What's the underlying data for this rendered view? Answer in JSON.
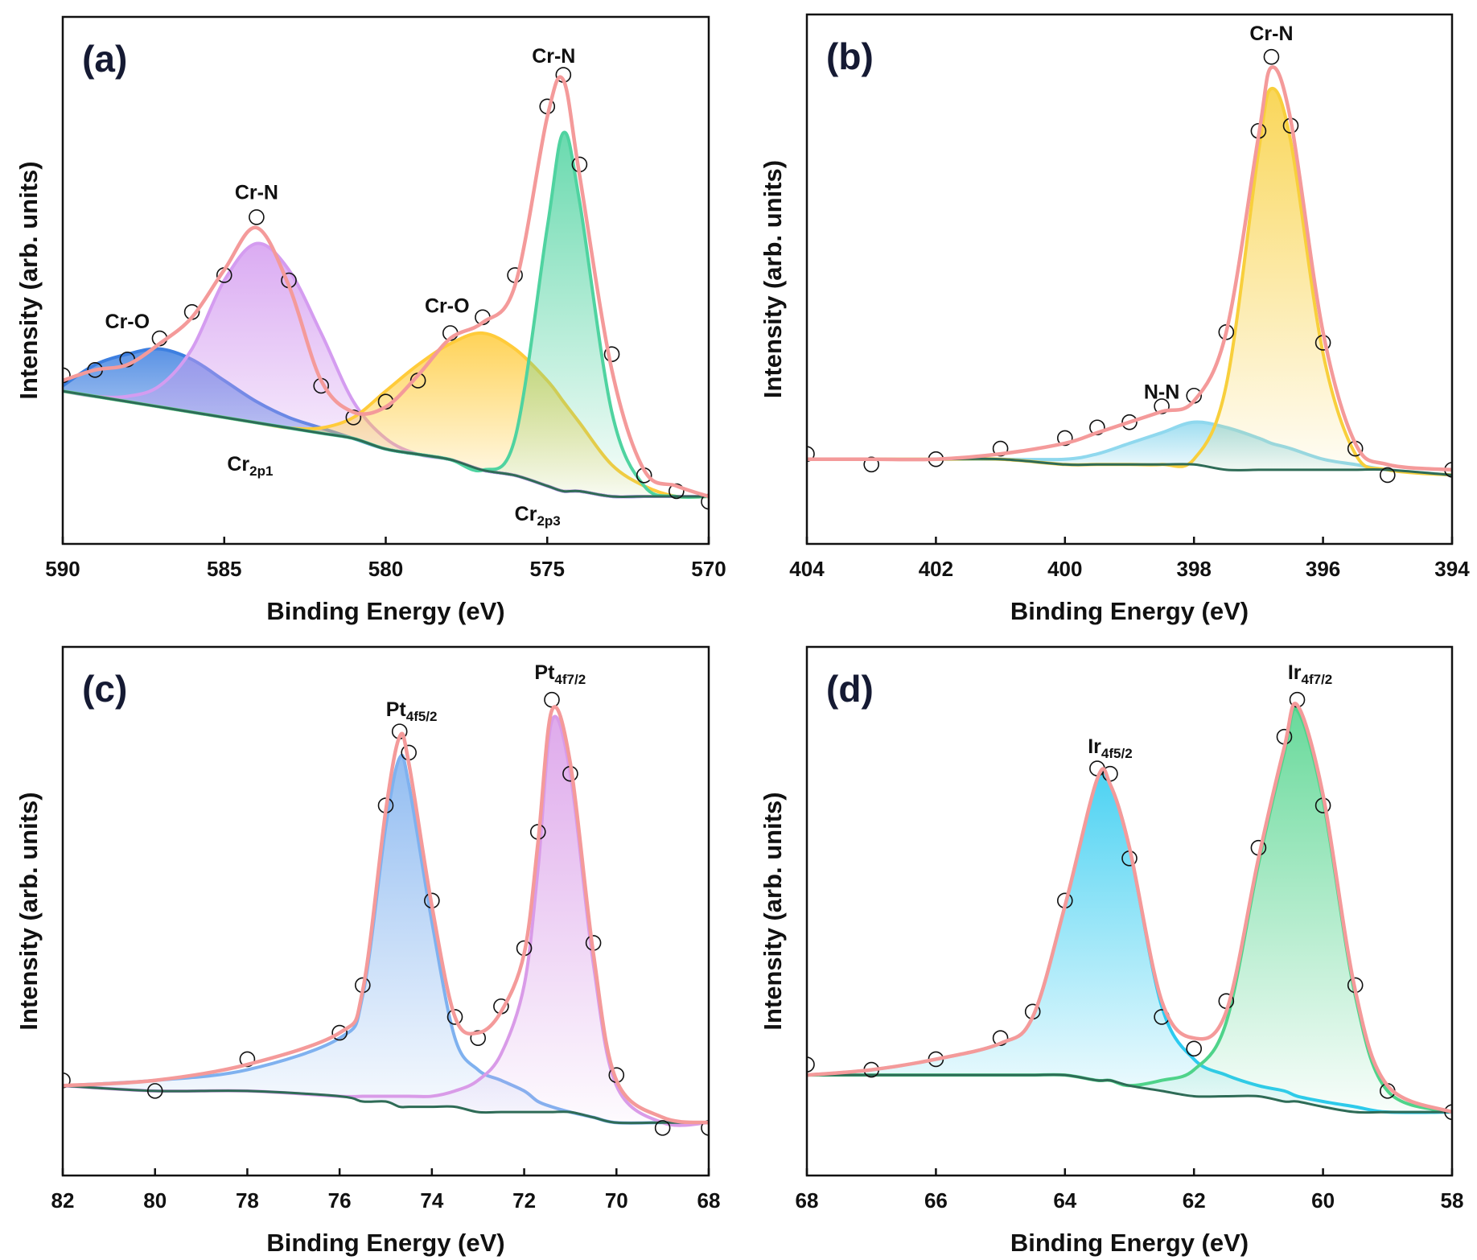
{
  "chart_data": [
    {
      "type": "line",
      "label": "(a)",
      "xlabel": "Binding Energy (eV)",
      "ylabel": "Intensity (arb. units)",
      "x": [
        590,
        589,
        588,
        587,
        586,
        585,
        584,
        583,
        582,
        581,
        580,
        579,
        578,
        577,
        576,
        575,
        574.5,
        574,
        573,
        572,
        571,
        570
      ],
      "xlim": [
        590,
        570
      ],
      "xticks": [
        590,
        585,
        580,
        575,
        570
      ],
      "ylim": [
        0,
        100
      ],
      "series": [
        {
          "mark": "area",
          "color": "#3d7fe0",
          "values": [
            30,
            34,
            36,
            37,
            35,
            31,
            27,
            24,
            22,
            20,
            18,
            17,
            16,
            14,
            13,
            11,
            10,
            10,
            9,
            9,
            9,
            9
          ]
        },
        {
          "mark": "area",
          "color": "#d49cf0",
          "values": [
            29,
            28,
            28,
            30,
            37,
            50,
            57,
            52,
            40,
            27,
            20,
            17,
            16,
            14,
            13,
            11,
            10,
            10,
            9,
            9,
            9,
            9
          ]
        },
        {
          "mark": "area",
          "color": "#ffcb3a",
          "values": [
            29,
            28,
            27,
            26,
            25,
            24,
            23,
            22,
            22,
            24,
            29,
            34,
            38,
            40,
            37,
            31,
            27,
            23,
            15,
            11,
            9,
            9
          ]
        },
        {
          "mark": "area",
          "color": "#4fd3a0",
          "values": [
            29,
            28,
            27,
            26,
            25,
            24,
            23,
            22,
            21,
            20,
            18,
            17,
            16,
            14,
            20,
            60,
            78,
            65,
            25,
            11,
            9,
            9
          ]
        },
        {
          "mark": "baseline",
          "color": "#2e6b56",
          "values": [
            29,
            28,
            27,
            26,
            25,
            24,
            23,
            22,
            21,
            20,
            18,
            17,
            16,
            14,
            13,
            11,
            10,
            10,
            9,
            9,
            9,
            9
          ]
        },
        {
          "mark": "scatter",
          "color": "#111111",
          "values": [
            32,
            33,
            35,
            39,
            44,
            51,
            62,
            50,
            30,
            24,
            27,
            31,
            40,
            43,
            51,
            83,
            89,
            72,
            36,
            13,
            10,
            8
          ]
        },
        {
          "mark": "line",
          "color": "#f49a9a",
          "values": [
            31,
            33,
            34,
            38,
            43,
            52,
            60,
            49,
            31,
            25,
            26,
            32,
            39,
            42,
            49,
            81,
            88,
            70,
            33,
            14,
            11,
            9
          ]
        }
      ],
      "annotations": [
        {
          "text": "Cr-O"
        },
        {
          "text": "Cr-N"
        },
        {
          "text": "Cr-O"
        },
        {
          "text": "Cr-N"
        },
        {
          "text": "Cr",
          "sub": "2p1"
        },
        {
          "text": "Cr",
          "sub": "2p3"
        }
      ]
    },
    {
      "type": "line",
      "label": "(b)",
      "xlabel": "Binding Energy (eV)",
      "ylabel": "Intensity (arb. units)",
      "x": [
        404,
        403,
        402,
        401,
        400,
        399.5,
        399,
        398.5,
        398,
        397.5,
        397,
        396.8,
        396.5,
        396,
        395.5,
        395,
        394
      ],
      "xlim": [
        404,
        394
      ],
      "xticks": [
        404,
        402,
        400,
        398,
        396,
        394
      ],
      "ylim": [
        0,
        100
      ],
      "series": [
        {
          "mark": "area",
          "color": "#8fd8ee",
          "values": [
            16,
            16,
            16,
            16,
            16,
            17,
            19,
            21,
            23,
            22,
            20,
            19,
            18,
            16,
            15,
            14,
            13
          ]
        },
        {
          "mark": "area",
          "color": "#f8cf3c",
          "values": [
            16,
            16,
            16,
            16,
            15,
            15,
            15,
            15,
            16,
            30,
            74,
            86,
            76,
            36,
            17,
            14,
            13
          ]
        },
        {
          "mark": "baseline",
          "color": "#2e6b56",
          "values": [
            16,
            16,
            16,
            16,
            15,
            15,
            15,
            15,
            15,
            14,
            14,
            14,
            14,
            14,
            14,
            14,
            13
          ]
        },
        {
          "mark": "scatter",
          "color": "#111111",
          "values": [
            17,
            15,
            16,
            18,
            20,
            22,
            23,
            26,
            28,
            40,
            78,
            92,
            79,
            38,
            18,
            13,
            14
          ]
        },
        {
          "mark": "line",
          "color": "#f49a9a",
          "values": [
            16,
            16,
            16,
            17,
            19,
            21,
            23,
            25,
            27,
            40,
            77,
            90,
            80,
            40,
            19,
            15,
            14
          ]
        }
      ],
      "annotations": [
        {
          "text": "Cr-N"
        },
        {
          "text": "N-N"
        }
      ]
    },
    {
      "type": "line",
      "label": "(c)",
      "xlabel": "Binding Energy (eV)",
      "ylabel": "Intensity (arb. units)",
      "x": [
        82,
        80,
        78,
        76,
        75.5,
        75,
        74.7,
        74.5,
        74,
        73.5,
        73,
        72.5,
        72,
        71.7,
        71.4,
        71,
        70.5,
        70,
        69,
        68
      ],
      "xlim": [
        82,
        68
      ],
      "xticks": [
        82,
        80,
        78,
        76,
        74,
        72,
        70,
        68
      ],
      "ylim": [
        0,
        100
      ],
      "series": [
        {
          "mark": "area",
          "color": "#7fb1ef",
          "values": [
            17,
            18,
            20,
            26,
            34,
            66,
            79,
            74,
            48,
            26,
            20,
            18,
            16,
            14,
            13,
            12,
            11,
            10,
            10,
            10
          ]
        },
        {
          "mark": "area",
          "color": "#d99be8",
          "values": [
            17,
            16,
            16,
            15,
            15,
            15,
            15,
            15,
            15,
            16,
            18,
            23,
            36,
            58,
            86,
            76,
            40,
            17,
            10,
            10
          ]
        },
        {
          "mark": "baseline",
          "color": "#2e6b56",
          "values": [
            17,
            16,
            16,
            15,
            14,
            14,
            13,
            13,
            13,
            13,
            12,
            12,
            12,
            12,
            12,
            12,
            11,
            10,
            10,
            10
          ]
        },
        {
          "mark": "scatter",
          "color": "#111111",
          "values": [
            18,
            16,
            22,
            27,
            36,
            70,
            84,
            80,
            52,
            30,
            26,
            32,
            43,
            65,
            90,
            76,
            44,
            19,
            9,
            9
          ]
        },
        {
          "mark": "line",
          "color": "#f49a9a",
          "values": [
            17,
            18,
            21,
            27,
            35,
            69,
            83,
            78,
            51,
            30,
            27,
            31,
            42,
            63,
            88,
            78,
            42,
            18,
            11,
            10
          ]
        }
      ],
      "annotations": [
        {
          "text": "Pt",
          "sub": "4f5/2"
        },
        {
          "text": "Pt",
          "sub": "4f7/2"
        }
      ]
    },
    {
      "type": "line",
      "label": "(d)",
      "xlabel": "Binding Energy (eV)",
      "ylabel": "Intensity (arb. units)",
      "x": [
        68,
        67,
        66,
        65,
        64.5,
        64,
        63.5,
        63.3,
        63,
        62.5,
        62,
        61.5,
        61,
        60.6,
        60.4,
        60,
        59.5,
        59,
        58
      ],
      "xlim": [
        68,
        58
      ],
      "xticks": [
        68,
        66,
        64,
        62,
        60,
        58
      ],
      "ylim": [
        0,
        100
      ],
      "series": [
        {
          "mark": "area",
          "color": "#2ccaf0",
          "values": [
            19,
            20,
            22,
            25,
            30,
            51,
            75,
            74,
            62,
            32,
            22,
            19,
            17,
            16,
            15,
            14,
            13,
            12,
            12
          ]
        },
        {
          "mark": "area",
          "color": "#4fd38a",
          "values": [
            19,
            19,
            19,
            19,
            19,
            19,
            18,
            18,
            17,
            18,
            20,
            29,
            59,
            80,
            88,
            71,
            34,
            16,
            12
          ]
        },
        {
          "mark": "baseline",
          "color": "#2e6b56",
          "values": [
            19,
            19,
            19,
            19,
            19,
            19,
            18,
            18,
            17,
            16,
            15,
            15,
            15,
            14,
            14,
            13,
            12,
            12,
            12
          ]
        },
        {
          "mark": "scatter",
          "color": "#111111",
          "values": [
            21,
            20,
            22,
            26,
            31,
            52,
            77,
            76,
            60,
            30,
            24,
            33,
            62,
            83,
            90,
            70,
            36,
            16,
            12
          ]
        },
        {
          "mark": "line",
          "color": "#f49a9a",
          "values": [
            19,
            20,
            22,
            25,
            30,
            51,
            75,
            74,
            62,
            33,
            26,
            31,
            60,
            81,
            89,
            72,
            35,
            17,
            12
          ]
        }
      ],
      "annotations": [
        {
          "text": "Ir",
          "sub": "4f5/2"
        },
        {
          "text": "Ir",
          "sub": "4f7/2"
        }
      ]
    }
  ]
}
